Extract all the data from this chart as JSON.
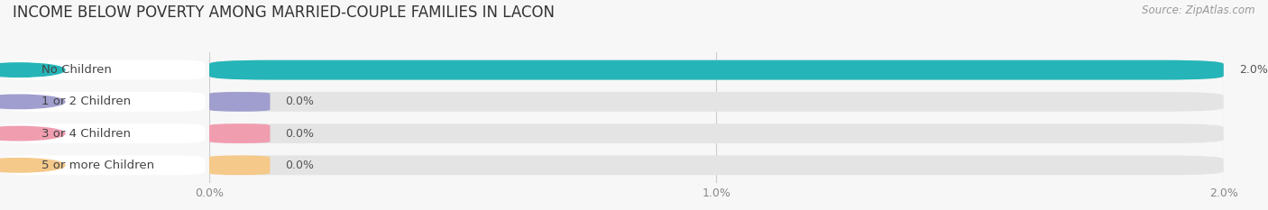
{
  "title": "INCOME BELOW POVERTY AMONG MARRIED-COUPLE FAMILIES IN LACON",
  "source": "Source: ZipAtlas.com",
  "categories": [
    "No Children",
    "1 or 2 Children",
    "3 or 4 Children",
    "5 or more Children"
  ],
  "values": [
    2.0,
    0.0,
    0.0,
    0.0
  ],
  "bar_colors": [
    "#25b5b8",
    "#a09ece",
    "#f09db0",
    "#f5c98a"
  ],
  "xlim": [
    0,
    2.0
  ],
  "xticks": [
    0.0,
    1.0,
    2.0
  ],
  "xticklabels": [
    "0.0%",
    "1.0%",
    "2.0%"
  ],
  "background_color": "#f7f7f7",
  "bar_bg_color": "#e4e4e4",
  "title_fontsize": 12,
  "source_fontsize": 8.5,
  "label_fontsize": 9.5,
  "value_fontsize": 9
}
